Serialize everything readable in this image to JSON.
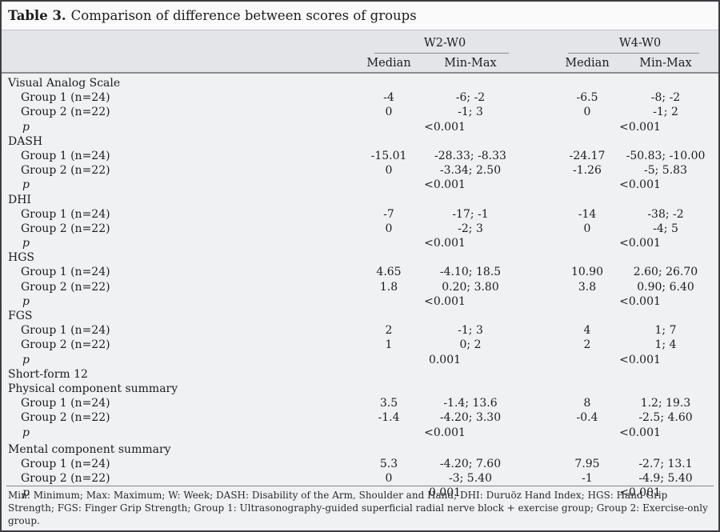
{
  "title": {
    "label": "Table 3.",
    "text": "Comparison of difference between scores of groups"
  },
  "table": {
    "group_headers": [
      "W2-W0",
      "W4-W0"
    ],
    "col_headers": {
      "median": "Median",
      "minmax": "Min-Max"
    },
    "p_label": "p",
    "sections": [
      {
        "headers": [
          "Visual Analog Scale"
        ],
        "rows": [
          {
            "label": "Group 1 (n=24)",
            "w2_median": "-4",
            "w2_minmax": "-6; -2",
            "w4_median": "-6.5",
            "w4_minmax": "-8; -2"
          },
          {
            "label": "Group 2 (n=22)",
            "w2_median": "0",
            "w2_minmax": "-1; 3",
            "w4_median": "0",
            "w4_minmax": "-1; 2"
          }
        ],
        "p": {
          "w2": "<0.001",
          "w4": "<0.001"
        }
      },
      {
        "headers": [
          "DASH"
        ],
        "rows": [
          {
            "label": "Group 1 (n=24)",
            "w2_median": "-15.01",
            "w2_minmax": "-28.33; -8.33",
            "w4_median": "-24.17",
            "w4_minmax": "-50.83; -10.00"
          },
          {
            "label": "Group 2 (n=22)",
            "w2_median": "0",
            "w2_minmax": "-3.34; 2.50",
            "w4_median": "-1.26",
            "w4_minmax": "-5; 5.83"
          }
        ],
        "p": {
          "w2": "<0.001",
          "w4": "<0.001"
        }
      },
      {
        "headers": [
          "DHI"
        ],
        "rows": [
          {
            "label": "Group 1 (n=24)",
            "w2_median": "-7",
            "w2_minmax": "-17; -1",
            "w4_median": "-14",
            "w4_minmax": "-38; -2"
          },
          {
            "label": "Group 2 (n=22)",
            "w2_median": "0",
            "w2_minmax": "-2; 3",
            "w4_median": "0",
            "w4_minmax": "-4; 5"
          }
        ],
        "p": {
          "w2": "<0.001",
          "w4": "<0.001"
        }
      },
      {
        "headers": [
          "HGS"
        ],
        "rows": [
          {
            "label": "Group 1 (n=24)",
            "w2_median": "4.65",
            "w2_minmax": "-4.10; 18.5",
            "w4_median": "10.90",
            "w4_minmax": "2.60; 26.70"
          },
          {
            "label": "Group 2 (n=22)",
            "w2_median": "1.8",
            "w2_minmax": "0.20; 3.80",
            "w4_median": "3.8",
            "w4_minmax": "0.90; 6.40"
          }
        ],
        "p": {
          "w2": "<0.001",
          "w4": "<0.001"
        }
      },
      {
        "headers": [
          "FGS"
        ],
        "rows": [
          {
            "label": "Group 1 (n=24)",
            "w2_median": "2",
            "w2_minmax": "-1; 3",
            "w4_median": "4",
            "w4_minmax": "1; 7"
          },
          {
            "label": "Group 2 (n=22)",
            "w2_median": "1",
            "w2_minmax": "0; 2",
            "w4_median": "2",
            "w4_minmax": "1; 4"
          }
        ],
        "p": {
          "w2": "0.001",
          "w4": "<0.001"
        }
      },
      {
        "headers": [
          "Short-form 12",
          "Physical component summary"
        ],
        "rows": [
          {
            "label": "Group 1 (n=24)",
            "w2_median": "3.5",
            "w2_minmax": "-1.4; 13.6",
            "w4_median": "8",
            "w4_minmax": "1.2; 19.3"
          },
          {
            "label": "Group 2 (n=22)",
            "w2_median": "-1.4",
            "w2_minmax": "-4.20; 3.30",
            "w4_median": "-0.4",
            "w4_minmax": "-2.5; 4.60"
          }
        ],
        "p": {
          "w2": "<0.001",
          "w4": "<0.001"
        }
      },
      {
        "headers": [
          "Mental component summary"
        ],
        "extra_gap": true,
        "rows": [
          {
            "label": "Group 1 (n=24)",
            "w2_median": "5.3",
            "w2_minmax": "-4.20; 7.60",
            "w4_median": "7.95",
            "w4_minmax": "-2.7; 13.1"
          },
          {
            "label": "Group 2 (n=22)",
            "w2_median": "0",
            "w2_minmax": "-3; 5.40",
            "w4_median": "-1",
            "w4_minmax": "-4.9; 5.40"
          }
        ],
        "p": {
          "w2": "0.001",
          "w4": "<0.001"
        }
      }
    ]
  },
  "footnote": "Min: Minimum; Max: Maximum; W: Week; DASH: Disability of the Arm, Shoulder and Hand; DHI: Duruöz Hand Index; HGS: Hand Grip Strength; FGS: Finger Grip Strength; Group 1: Ultrasonography-guided superficial radial nerve block + exercise group; Group 2: Exercise-only group."
}
